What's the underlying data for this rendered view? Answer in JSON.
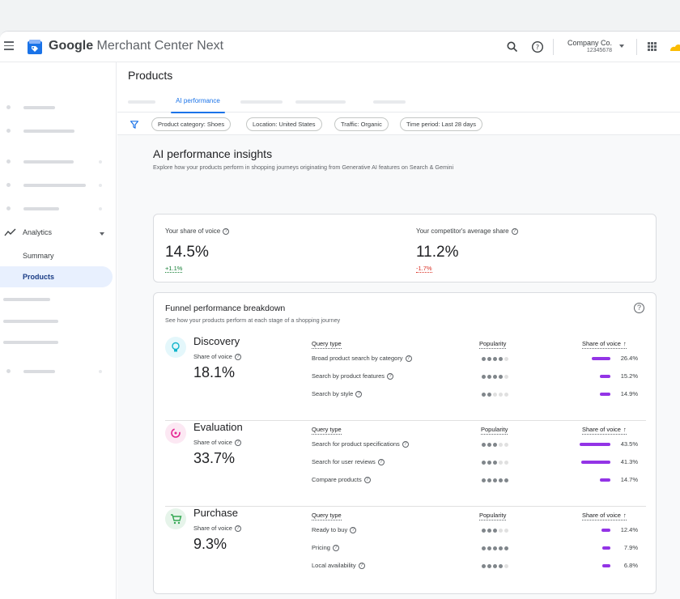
{
  "app": {
    "title_brand": "Google",
    "title_rest": " Merchant Center Next",
    "account_name": "Company Co.",
    "account_id": "12345678"
  },
  "sidebar": {
    "analytics_label": "Analytics",
    "items": [
      {
        "label": "Summary",
        "active": false
      },
      {
        "label": "Products",
        "active": true
      }
    ]
  },
  "page": {
    "title": "Products",
    "active_tab": "AI performance"
  },
  "filters": [
    "Product category: Shoes",
    "Location: United States",
    "Traffic: Organic",
    "Time period: Last 28 days"
  ],
  "insights": {
    "title": "AI performance insights",
    "subtitle": "Explore how your products perform in shopping journeys originating from Generative AI features on Search & Gemini",
    "your_share": {
      "label": "Your share of voice",
      "value": "14.5%",
      "delta": "+1.1%"
    },
    "competitor_share": {
      "label": "Your competitor's average share",
      "value": "11.2%",
      "delta": "-1.7%"
    }
  },
  "funnel": {
    "title": "Funnel performance breakdown",
    "subtitle": "See how your products perform at each stage of a shopping journey",
    "col_query": "Query type",
    "col_popularity": "Popularity",
    "col_sov": "Share of voice",
    "sov_arrow": "↑",
    "stages": [
      {
        "name": "Discovery",
        "icon": "lightbulb-icon",
        "color": "#12b5cb",
        "sov_label": "Share of voice",
        "sov": "18.1%",
        "rows": [
          {
            "query": "Broad product search by category",
            "help": true,
            "popularity": 4,
            "share": 26.4,
            "share_label": "26.4%"
          },
          {
            "query": "Search by product features",
            "help": true,
            "popularity": 4,
            "share": 15.2,
            "share_label": "15.2%"
          },
          {
            "query": "Search by style",
            "help": true,
            "popularity": 2,
            "share": 14.9,
            "share_label": "14.9%"
          }
        ]
      },
      {
        "name": "Evaluation",
        "icon": "compare-icon",
        "color": "#e52592",
        "sov_label": "Share of voice",
        "sov": "33.7%",
        "rows": [
          {
            "query": "Search for product specifications",
            "help": true,
            "popularity": 3,
            "share": 43.5,
            "share_label": "43.5%"
          },
          {
            "query": "Search for user reviews",
            "help": true,
            "popularity": 3,
            "share": 41.3,
            "share_label": "41.3%"
          },
          {
            "query": "Compare products",
            "help": true,
            "popularity": 5,
            "share": 14.7,
            "share_label": "14.7%"
          }
        ]
      },
      {
        "name": "Purchase",
        "icon": "cart-icon",
        "color": "#34a853",
        "sov_label": "Share of voice",
        "sov": "9.3%",
        "rows": [
          {
            "query": "Ready to buy",
            "help": true,
            "popularity": 3,
            "share": 12.4,
            "share_label": "12.4%"
          },
          {
            "query": "Pricing",
            "help": true,
            "popularity": 5,
            "share": 7.9,
            "share_label": "7.9%"
          },
          {
            "query": "Local availability",
            "help": true,
            "popularity": 4,
            "share": 6.8,
            "share_label": "6.8%"
          }
        ]
      }
    ]
  },
  "colors": {
    "accent": "#1a73e8",
    "bar": "#9334e6",
    "positive": "#188038",
    "negative": "#d93025"
  }
}
